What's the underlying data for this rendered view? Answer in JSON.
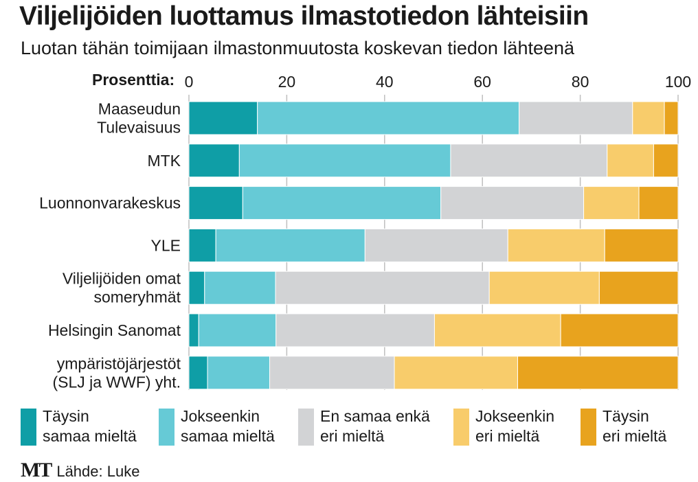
{
  "title": "Viljelijöiden luottamus ilmastotiedon lähteisiin",
  "subtitle": "Luotan tähän toimijaan ilmastonmuutosta koskevan tiedon lähteenä",
  "logo": "MT",
  "source": "Lähde: Luke",
  "colors": {
    "taysin_samaa": "#0f9ea6",
    "jokseenkin_samaa": "#66cad6",
    "neutraali": "#d2d3d5",
    "jokseenkin_eri": "#f8cc6b",
    "taysin_eri": "#e8a31e",
    "gridline": "#bfbfbf",
    "text": "#1a1a1a"
  },
  "chart_data": {
    "type": "bar",
    "orientation": "horizontal",
    "stacked": true,
    "xlabel": "Prosenttia:",
    "xlim": [
      0,
      100
    ],
    "xticks": [
      0,
      20,
      40,
      60,
      80,
      100
    ],
    "grid": true,
    "legend_position": "bottom",
    "categories": [
      "Maaseudun\nTulevaisuus",
      "MTK",
      "Luonnonvarakeskus",
      "YLE",
      "Viljelijöiden omat\nsomeryhmät",
      "Helsingin Sanomat",
      "ympäristöjärjestöt\n(SLJ ja WWF) yht."
    ],
    "series": [
      {
        "name": "Täysin\nsamaa mieltä",
        "color_key": "taysin_samaa",
        "values": [
          14,
          10.3,
          11,
          5.5,
          3.2,
          2,
          3.8
        ]
      },
      {
        "name": "Jokseenkin\nsamaa mieltä",
        "color_key": "jokseenkin_samaa",
        "values": [
          53.5,
          43.2,
          40.5,
          30.5,
          14.5,
          15.8,
          12.7
        ]
      },
      {
        "name": "En samaa enkä\neri mieltä",
        "color_key": "neutraali",
        "values": [
          23.2,
          32,
          29.2,
          29.2,
          43.7,
          32.4,
          25.5
        ]
      },
      {
        "name": "Jokseenkin\neri mieltä",
        "color_key": "jokseenkin_eri",
        "values": [
          6.5,
          9.5,
          11.3,
          19.8,
          22.5,
          25.8,
          25.2
        ]
      },
      {
        "name": "Täysin\neri mieltä",
        "color_key": "taysin_eri",
        "values": [
          2.8,
          5,
          8,
          15,
          16.1,
          24,
          32.8
        ]
      }
    ]
  }
}
